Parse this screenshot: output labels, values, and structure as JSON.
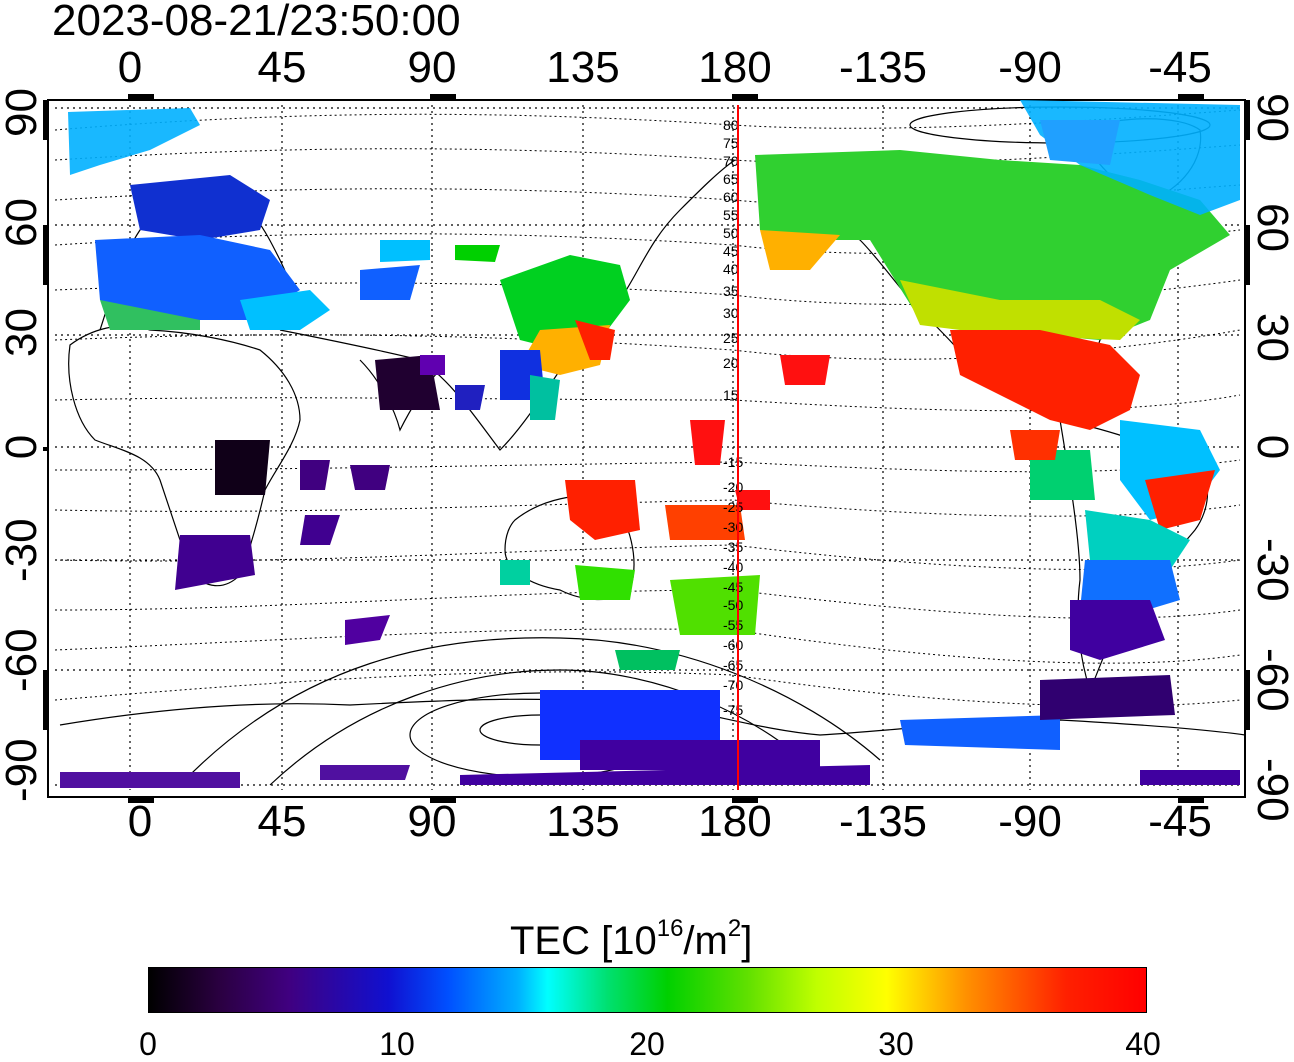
{
  "timestamp": "2023-08-21/23:50:00",
  "map": {
    "top_lon_labels": [
      "0",
      "45",
      "90",
      "135",
      "180",
      "-135",
      "-90",
      "-45"
    ],
    "bottom_lon_labels": [
      "0",
      "45",
      "90",
      "135",
      "180",
      "-135",
      "-90",
      "-45"
    ],
    "left_lat_labels": [
      "90",
      "60",
      "30",
      "0",
      "-30",
      "-60",
      "-90"
    ],
    "right_lat_labels": [
      "90",
      "60",
      "30",
      "0",
      "-30",
      "-60",
      "-90"
    ],
    "contour_labels": [
      "80",
      "75",
      "70",
      "65",
      "60",
      "55",
      "50",
      "45",
      "40",
      "35",
      "30",
      "25",
      "20",
      "15",
      "-15",
      "-20",
      "-25",
      "-30",
      "-35",
      "-40",
      "-45",
      "-50",
      "-55",
      "-60",
      "-65",
      "-70",
      "-75"
    ],
    "terminator_color": "#ff0000"
  },
  "colorbar": {
    "title_main": "TEC  [10",
    "title_sup1": "16",
    "title_mid": "/m",
    "title_sup2": "2",
    "title_end": "]",
    "tick_labels": [
      "0",
      "10",
      "20",
      "30",
      "40"
    ],
    "range": [
      0,
      40
    ],
    "colors": [
      "#000000",
      "#400080",
      "#0050ff",
      "#00ffff",
      "#00d000",
      "#ffff00",
      "#ff0000"
    ]
  }
}
